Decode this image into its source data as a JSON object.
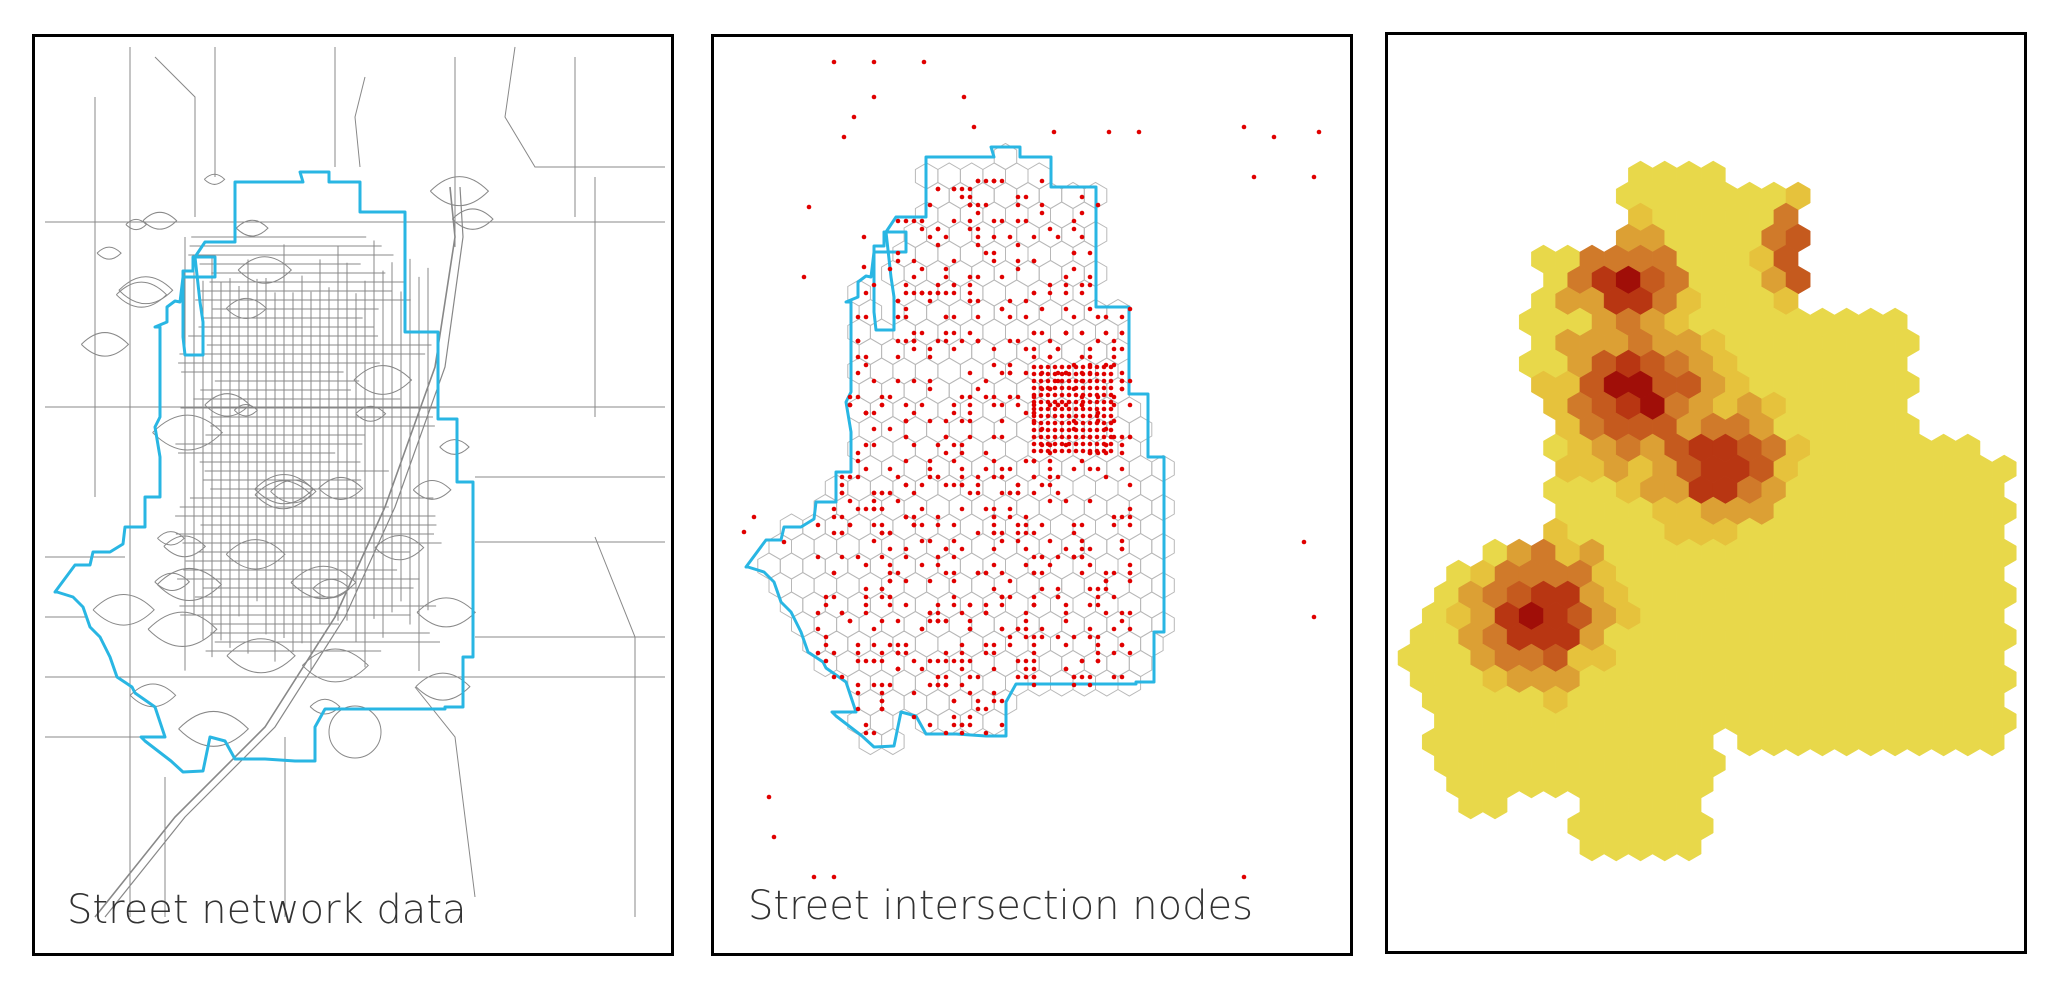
{
  "panels": [
    {
      "caption": "Street network data"
    },
    {
      "caption": "Street intersection nodes"
    },
    {
      "caption": ""
    }
  ],
  "colors": {
    "boundary": "#29b6e3",
    "street": "#888888",
    "node": "#e00000",
    "hex_grid": "#b8b8b8",
    "density_ramp": [
      "#e8d84a",
      "#e6c23c",
      "#dca034",
      "#d07a2a",
      "#c55a1e",
      "#b83612",
      "#a00e08"
    ]
  }
}
